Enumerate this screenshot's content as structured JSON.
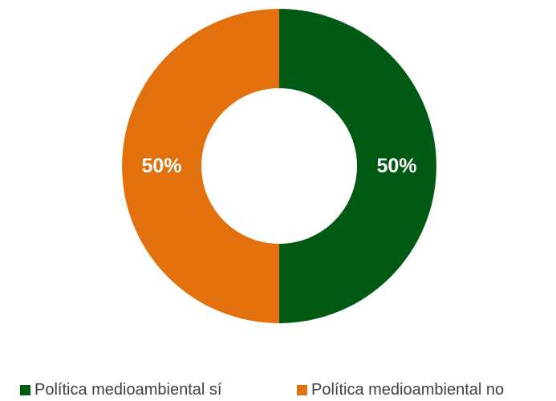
{
  "chart_data": {
    "type": "pie",
    "variant": "donut",
    "series": [
      {
        "name": "Política medioambiental sí",
        "value": 50,
        "label": "50%",
        "color": "#005a13"
      },
      {
        "name": "Política medioambiental no",
        "value": 50,
        "label": "50%",
        "color": "#e2700c"
      }
    ],
    "legend": {
      "position": "bottom",
      "items": [
        {
          "label": "Política medioambiental sí",
          "color": "#005a13"
        },
        {
          "label": "Política medioambiental no",
          "color": "#e2700c"
        }
      ]
    }
  }
}
